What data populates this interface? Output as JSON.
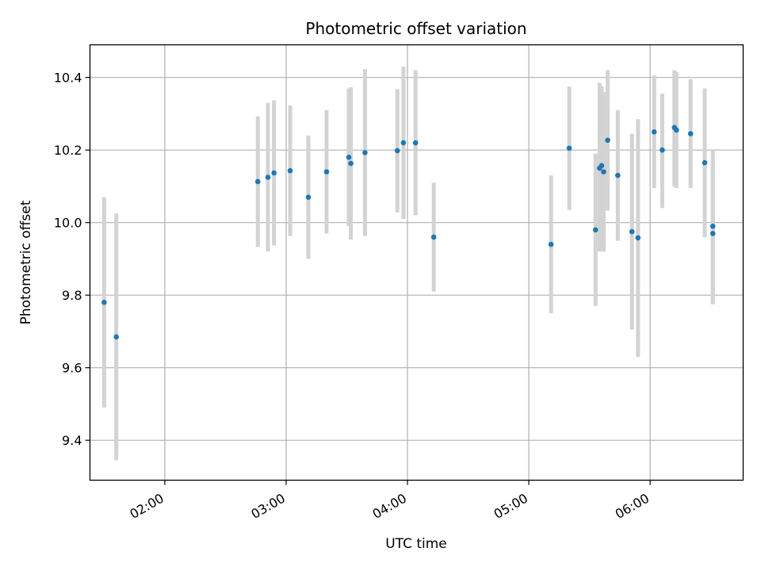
{
  "chart_data": {
    "type": "scatter",
    "title": "Photometric offset variation",
    "xlabel": "UTC time",
    "ylabel": "Photometric offset",
    "x_axis_kind": "time",
    "xlim": [
      "01:23",
      "06:46"
    ],
    "ylim": [
      9.29,
      10.49
    ],
    "x_ticks": [
      "02:00",
      "03:00",
      "04:00",
      "05:00",
      "06:00"
    ],
    "y_ticks": [
      9.4,
      9.6,
      9.8,
      10.0,
      10.2,
      10.4
    ],
    "grid": true,
    "point_color": "#1f77b4",
    "errorbar_color": "#d3d3d3",
    "series": [
      {
        "points": [
          {
            "x": "01:30",
            "y": 9.78,
            "ylo": 9.49,
            "yhi": 10.07
          },
          {
            "x": "01:36",
            "y": 9.685,
            "ylo": 9.345,
            "yhi": 10.025
          },
          {
            "x": "02:46",
            "y": 10.113,
            "ylo": 9.933,
            "yhi": 10.293
          },
          {
            "x": "02:51",
            "y": 10.125,
            "ylo": 9.92,
            "yhi": 10.33
          },
          {
            "x": "02:54",
            "y": 10.137,
            "ylo": 9.937,
            "yhi": 10.337
          },
          {
            "x": "03:02",
            "y": 10.143,
            "ylo": 9.963,
            "yhi": 10.323
          },
          {
            "x": "03:11",
            "y": 10.07,
            "ylo": 9.9,
            "yhi": 10.24
          },
          {
            "x": "03:20",
            "y": 10.14,
            "ylo": 9.97,
            "yhi": 10.31
          },
          {
            "x": "03:31",
            "y": 10.18,
            "ylo": 9.99,
            "yhi": 10.37
          },
          {
            "x": "03:32",
            "y": 10.163,
            "ylo": 9.953,
            "yhi": 10.373
          },
          {
            "x": "03:39",
            "y": 10.193,
            "ylo": 9.963,
            "yhi": 10.423
          },
          {
            "x": "03:55",
            "y": 10.198,
            "ylo": 10.028,
            "yhi": 10.368
          },
          {
            "x": "03:58",
            "y": 10.22,
            "ylo": 10.01,
            "yhi": 10.43
          },
          {
            "x": "04:04",
            "y": 10.22,
            "ylo": 10.02,
            "yhi": 10.42
          },
          {
            "x": "04:13",
            "y": 9.96,
            "ylo": 9.81,
            "yhi": 10.11
          },
          {
            "x": "05:11",
            "y": 9.94,
            "ylo": 9.75,
            "yhi": 10.13
          },
          {
            "x": "05:20",
            "y": 10.205,
            "ylo": 10.035,
            "yhi": 10.375
          },
          {
            "x": "05:33",
            "y": 9.98,
            "ylo": 9.77,
            "yhi": 10.19
          },
          {
            "x": "05:35",
            "y": 10.15,
            "ylo": 9.92,
            "yhi": 10.385
          },
          {
            "x": "05:36",
            "y": 10.157,
            "ylo": 9.927,
            "yhi": 10.377
          },
          {
            "x": "05:37",
            "y": 10.14,
            "ylo": 9.92,
            "yhi": 10.36
          },
          {
            "x": "05:39",
            "y": 10.227,
            "ylo": 10.033,
            "yhi": 10.42
          },
          {
            "x": "05:44",
            "y": 10.13,
            "ylo": 9.95,
            "yhi": 10.31
          },
          {
            "x": "05:51",
            "y": 9.975,
            "ylo": 9.705,
            "yhi": 10.245
          },
          {
            "x": "05:54",
            "y": 9.958,
            "ylo": 9.63,
            "yhi": 10.285
          },
          {
            "x": "06:02",
            "y": 10.25,
            "ylo": 10.095,
            "yhi": 10.405
          },
          {
            "x": "06:06",
            "y": 10.2,
            "ylo": 10.04,
            "yhi": 10.355
          },
          {
            "x": "06:12",
            "y": 10.262,
            "ylo": 10.1,
            "yhi": 10.42
          },
          {
            "x": "06:13",
            "y": 10.255,
            "ylo": 10.095,
            "yhi": 10.415
          },
          {
            "x": "06:20",
            "y": 10.245,
            "ylo": 10.095,
            "yhi": 10.395
          },
          {
            "x": "06:27",
            "y": 10.165,
            "ylo": 9.96,
            "yhi": 10.37
          },
          {
            "x": "06:31",
            "y": 9.99,
            "ylo": 9.78,
            "yhi": 10.2
          },
          {
            "x": "06:31",
            "y": 9.97,
            "ylo": 9.775,
            "yhi": 10.17
          }
        ]
      }
    ]
  }
}
